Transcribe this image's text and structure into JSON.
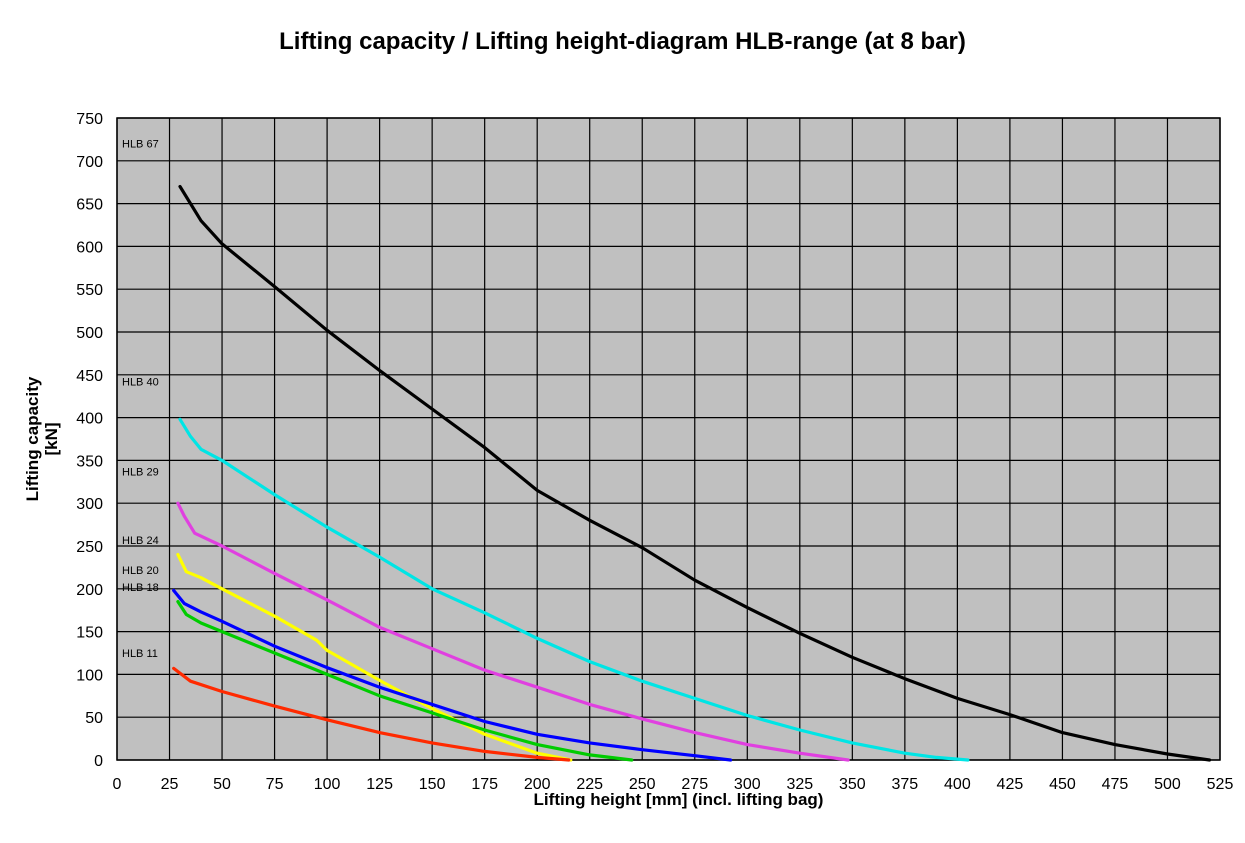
{
  "chart_data": {
    "type": "line",
    "title": "Lifting capacity / Lifting height-diagram HLB-range (at 8 bar)",
    "xlabel": "Lifting height [mm] (incl. lifting bag)",
    "ylabel_lines": [
      "Lifting capacity",
      "[kN]"
    ],
    "xlim": [
      0,
      525
    ],
    "ylim": [
      0,
      750
    ],
    "x_ticks": [
      "0",
      "25",
      "50",
      "75",
      "100",
      "125",
      "150",
      "175",
      "200",
      "225",
      "250",
      "275",
      "300",
      "325",
      "350",
      "375",
      "400",
      "425",
      "450",
      "475",
      "500",
      "525"
    ],
    "y_ticks": [
      "0",
      "50",
      "100",
      "150",
      "200",
      "250",
      "300",
      "350",
      "400",
      "450",
      "500",
      "550",
      "600",
      "650",
      "700",
      "750"
    ],
    "grid": true,
    "plot_background": "#c0c0c0",
    "series": [
      {
        "name": "HLB 67",
        "color": "#000000",
        "x": [
          30,
          40,
          50,
          75,
          100,
          125,
          150,
          175,
          200,
          225,
          250,
          275,
          300,
          325,
          350,
          375,
          400,
          425,
          450,
          475,
          500,
          520
        ],
        "y": [
          670,
          630,
          603,
          553,
          502,
          455,
          410,
          365,
          315,
          280,
          248,
          210,
          178,
          148,
          120,
          95,
          72,
          53,
          32,
          18,
          7,
          0
        ]
      },
      {
        "name": "HLB 40",
        "color": "#00e5e5",
        "x": [
          30,
          35,
          40,
          50,
          75,
          100,
          125,
          150,
          175,
          200,
          225,
          250,
          275,
          300,
          325,
          350,
          375,
          390,
          405
        ],
        "y": [
          398,
          378,
          363,
          350,
          310,
          272,
          237,
          200,
          172,
          142,
          115,
          92,
          72,
          52,
          35,
          20,
          8,
          3,
          0
        ]
      },
      {
        "name": "HLB 29",
        "color": "#e040e0",
        "x": [
          29,
          32,
          37,
          50,
          75,
          100,
          125,
          150,
          175,
          200,
          225,
          250,
          275,
          300,
          325,
          348
        ],
        "y": [
          300,
          285,
          265,
          250,
          218,
          187,
          155,
          130,
          105,
          85,
          65,
          48,
          32,
          18,
          8,
          0
        ]
      },
      {
        "name": "HLB 24",
        "color": "#ffff00",
        "x": [
          29,
          33,
          40,
          50,
          75,
          95,
          100,
          125,
          150,
          175,
          200,
          216
        ],
        "y": [
          240,
          220,
          213,
          200,
          168,
          140,
          128,
          93,
          60,
          30,
          8,
          0
        ]
      },
      {
        "name": "HLB 20",
        "color": "#00cc00",
        "x": [
          29,
          33,
          40,
          50,
          75,
          100,
          125,
          150,
          175,
          200,
          225,
          245
        ],
        "y": [
          185,
          170,
          160,
          150,
          125,
          100,
          75,
          55,
          35,
          18,
          6,
          0
        ]
      },
      {
        "name": "HLB 18",
        "color": "#0000ff",
        "x": [
          27,
          32,
          40,
          50,
          75,
          100,
          125,
          150,
          175,
          200,
          225,
          250,
          275,
          292
        ],
        "y": [
          198,
          183,
          173,
          162,
          133,
          108,
          85,
          65,
          45,
          30,
          20,
          12,
          5,
          0
        ]
      },
      {
        "name": "HLB 11",
        "color": "#ff2a00",
        "x": [
          27,
          35,
          50,
          75,
          100,
          125,
          150,
          175,
          200,
          215
        ],
        "y": [
          107,
          92,
          80,
          63,
          47,
          32,
          20,
          10,
          3,
          0
        ]
      }
    ],
    "series_labels": [
      {
        "name": "HLB 67",
        "y": 720
      },
      {
        "name": "HLB 40",
        "y": 442
      },
      {
        "name": "HLB 29",
        "y": 337
      },
      {
        "name": "HLB 24",
        "y": 257
      },
      {
        "name": "HLB 20",
        "y": 222
      },
      {
        "name": "HLB 18",
        "y": 202
      },
      {
        "name": "HLB 11",
        "y": 125
      }
    ]
  }
}
